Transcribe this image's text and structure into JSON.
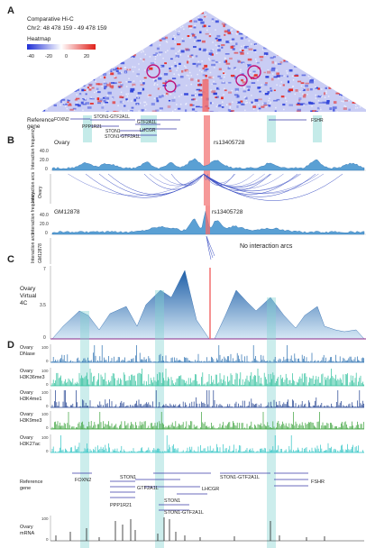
{
  "panelA": {
    "letter": "A",
    "title": "Comparative Hi-C",
    "region": "Chr2: 48 478 159 - 49 478 159",
    "heatmap_label": "Heatmap",
    "scale_ticks": [
      "-40",
      "-20",
      "0",
      "20"
    ],
    "snp": "rs13405728",
    "ref_label": "Reference\ngene",
    "genes": [
      "FOXN2",
      "PPP1R21",
      "STON1-GTF2A1L",
      "GTF2A1L",
      "STON1",
      "LHCGR",
      "STON1-GTF2A1L",
      "FSHR"
    ]
  },
  "panelB": {
    "letter": "B",
    "ovary": "Ovary",
    "freq_label": "Interaction frequency",
    "arcs_label": "Interaction arcs",
    "snp": "rs13405728",
    "y_ticks_ovary": [
      "40.0",
      "20.0",
      "0"
    ],
    "gm_name": "GM12878",
    "y_ticks_gm": [
      "40.0",
      "20.0",
      "0"
    ],
    "no_arcs": "No interaction arcs"
  },
  "panelC": {
    "letter": "C",
    "label_top": "Ovary",
    "label_mid": "Virtual",
    "label_bot": "4C",
    "y_ticks": [
      "7",
      "3.5",
      "0"
    ]
  },
  "panelD": {
    "letter": "D",
    "tracks": [
      {
        "l1": "Ovary",
        "l2": "DNase",
        "max": "100",
        "min": "0",
        "color": "#2a6fb0"
      },
      {
        "l1": "Ovary",
        "l2": "H3K36me3",
        "max": "100",
        "min": "0",
        "color": "#2bbf9a"
      },
      {
        "l1": "Ovary",
        "l2": "H3K4me1",
        "max": "100",
        "min": "0",
        "color": "#1f3f8f"
      },
      {
        "l1": "Ovary",
        "l2": "H3K9me3",
        "max": "100",
        "min": "0",
        "color": "#3aa13a"
      },
      {
        "l1": "Ovary",
        "l2": "H3K27ac",
        "max": "100",
        "min": "0",
        "color": "#2ec4c4"
      }
    ],
    "ref_label": "Reference\ngene",
    "genes": [
      "FOXN2",
      "STON1",
      "GTF2A1L",
      "STON1-GTF2A1L",
      "LHCGR",
      "FSHR",
      "PPP1R21",
      "STON1",
      "STON1-GTF2A1L"
    ],
    "mrna_l1": "Ovary",
    "mrna_l2": "mRNA",
    "mrna_max": "100",
    "mrna_min": "0"
  },
  "colors": {
    "highlight": "#7fd3cf",
    "snp": "#f26d6d",
    "heat_pos": "#e8261f",
    "heat_neg": "#2b3fd8"
  }
}
